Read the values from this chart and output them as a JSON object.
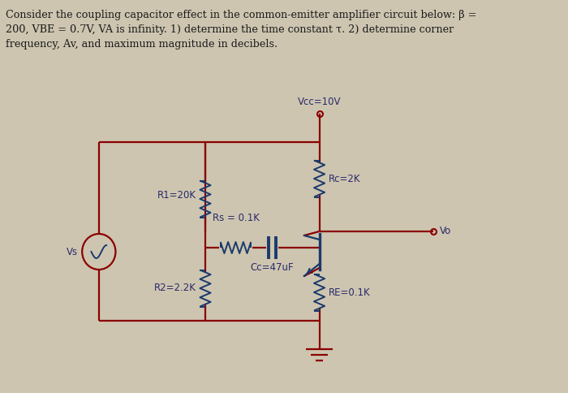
{
  "background_color": "#cdc5b0",
  "text_color": "#1a1a1a",
  "circuit_color": "#8b0000",
  "component_color": "#1a3a6b",
  "vcc_label": "Vcc=10V",
  "rc_label": "Rc=2K",
  "r1_label": "R1=20K",
  "rs_label": "Rs = 0.1K",
  "cc_label": "Cc=47uF",
  "r2_label": "R2=2.2K",
  "re_label": "RE=0.1K",
  "vo_label": "Vo",
  "vs_label": "Vs",
  "header_line1": "Consider the coupling capacitor effect in the common-emitter amplifier circuit below: β =",
  "header_line2": "200, Vʙᴇ = 0.7V, Vᴀ is infinity. 1) determine the time constant τ. 2) determine corner",
  "header_line3": "frequency, Av, and maximum magnitude in decibels."
}
